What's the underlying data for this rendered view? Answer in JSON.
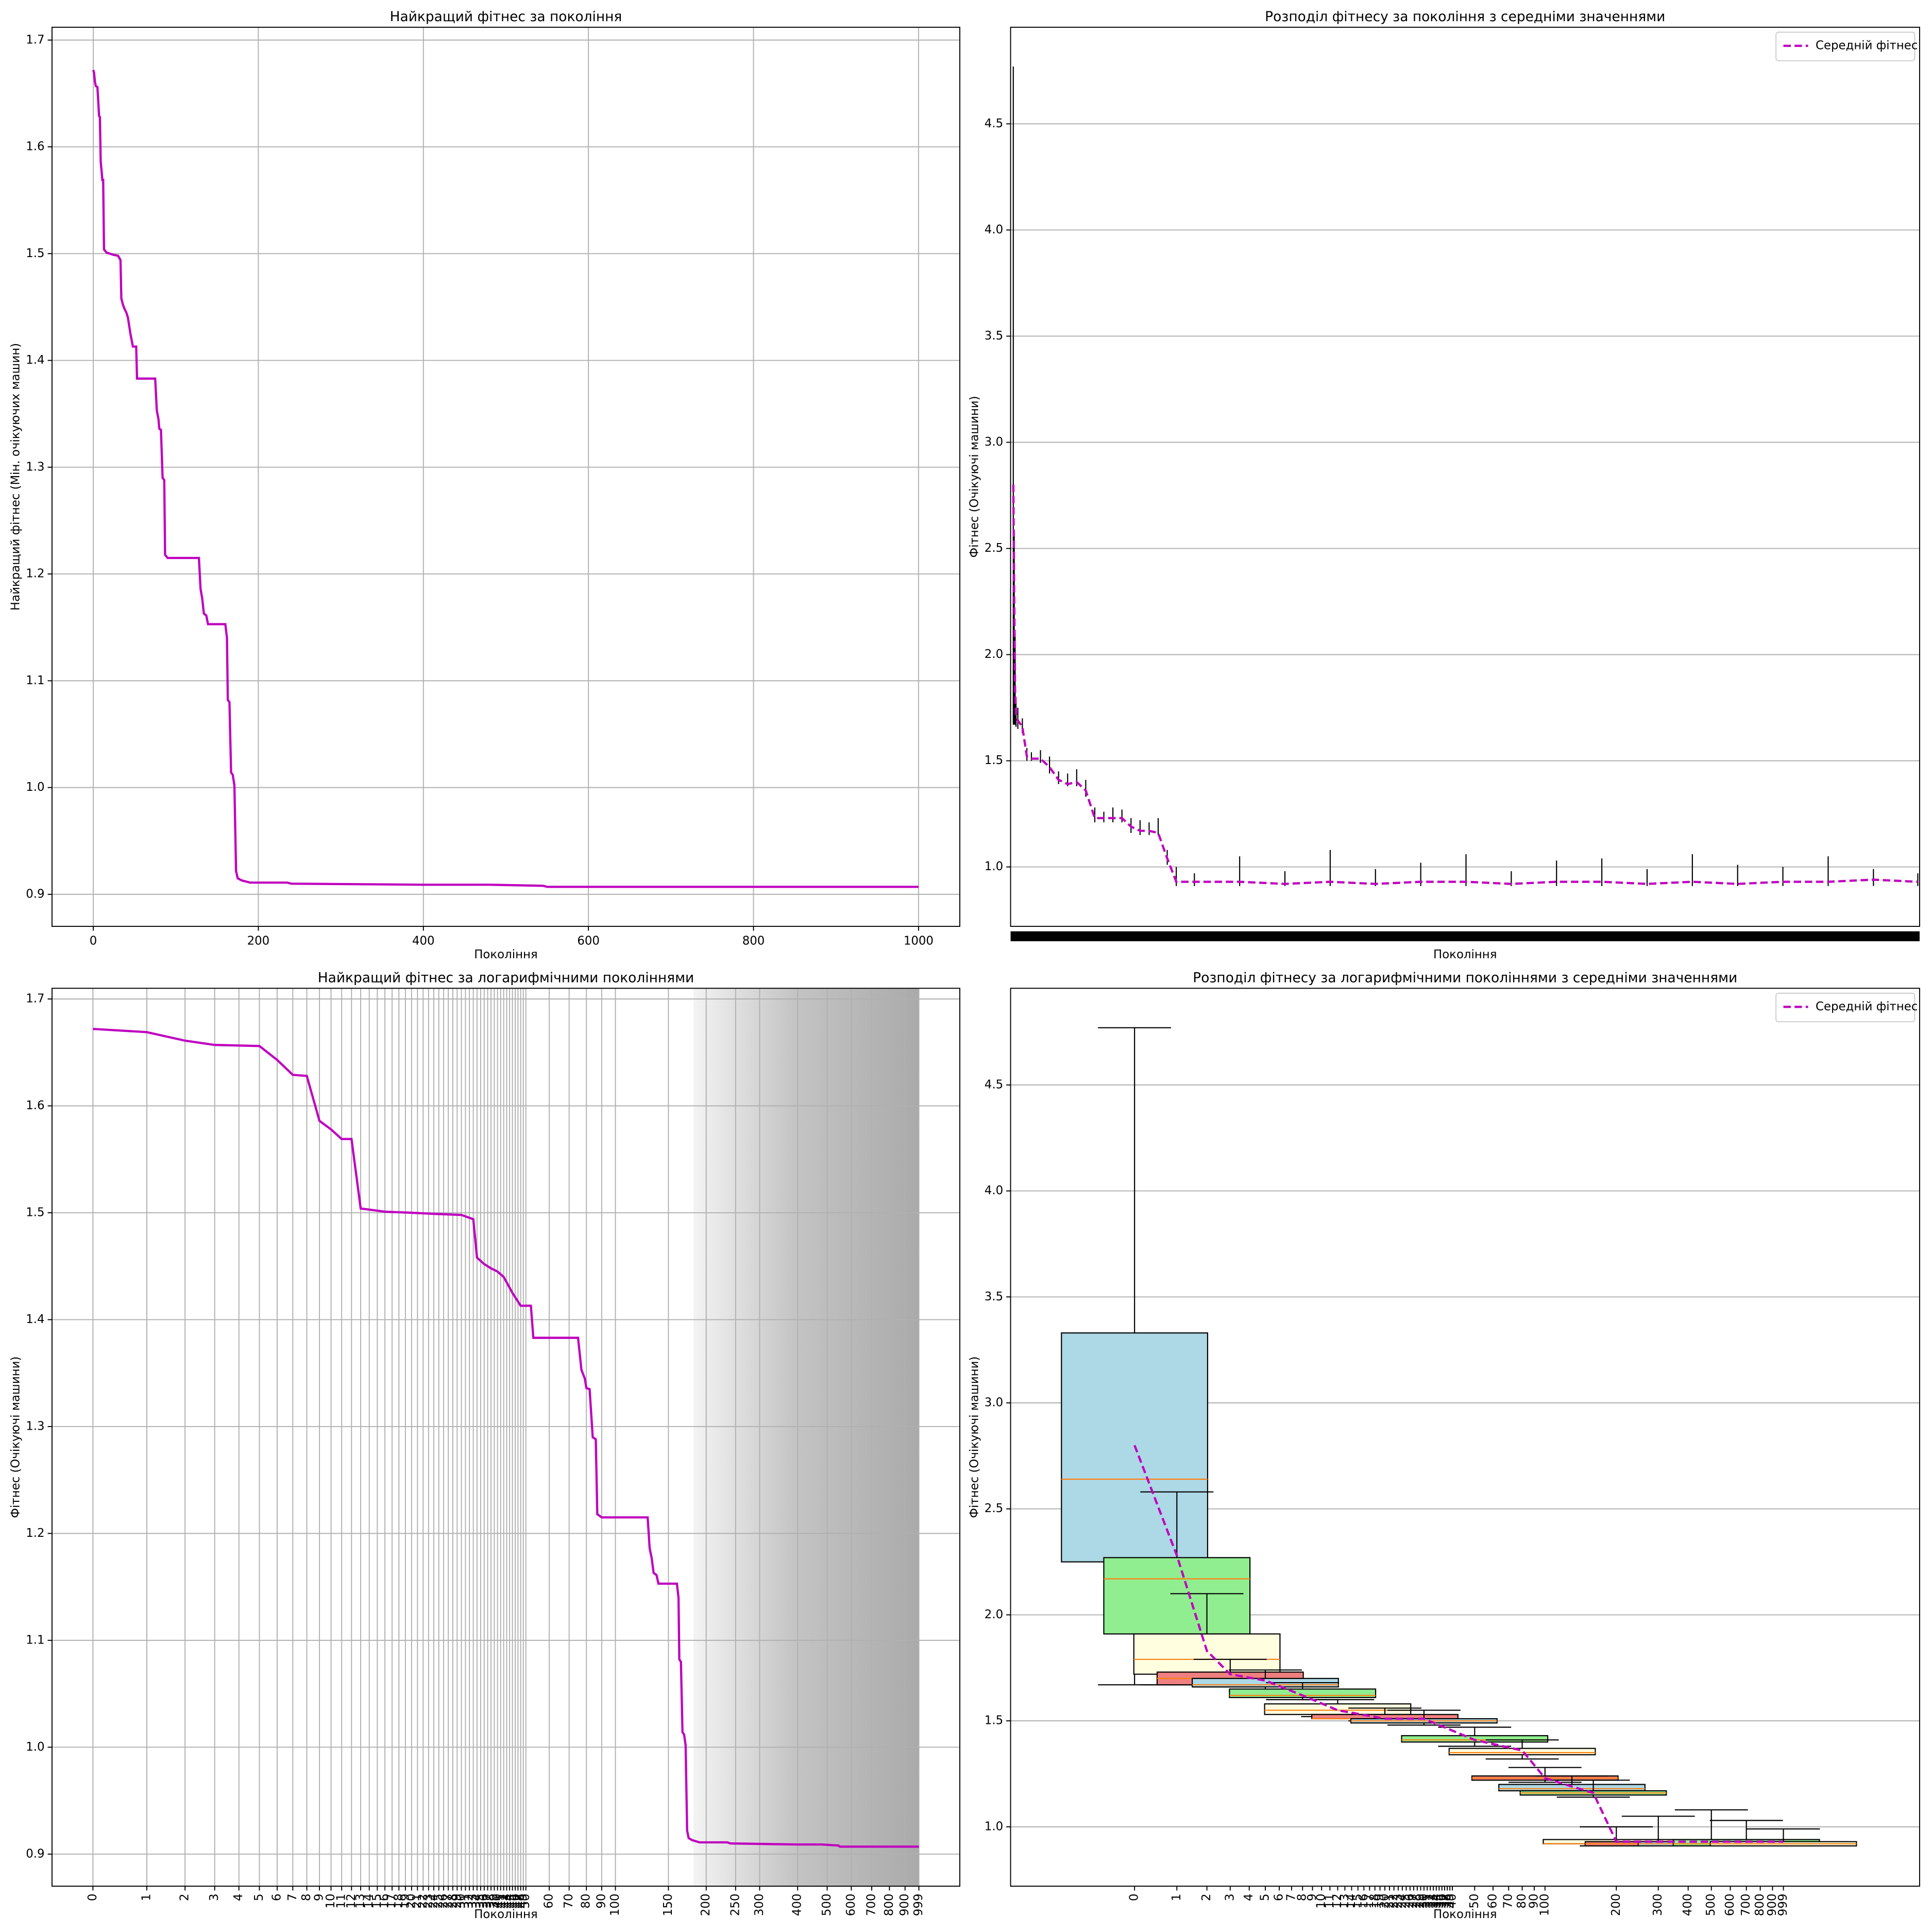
{
  "chart_data": [
    {
      "type": "line",
      "title": "Найкращий фітнес за покоління",
      "xlabel": "Покоління",
      "ylabel": "Найкращий фітнес (Мін. очікуючих машин)",
      "x": [
        0,
        1,
        2,
        3,
        5,
        6,
        7,
        8,
        9,
        10,
        11,
        12,
        13,
        16,
        20,
        24,
        30,
        33,
        34,
        36,
        38,
        40,
        42,
        45,
        48,
        52,
        53,
        75,
        77,
        79,
        80,
        82,
        84,
        86,
        87,
        90,
        128,
        130,
        132,
        134,
        137,
        139,
        160,
        162,
        163,
        165,
        167,
        169,
        171,
        173,
        175,
        180,
        190,
        235,
        240,
        400,
        480,
        545,
        550,
        1000
      ],
      "values": [
        1.672,
        1.669,
        1.661,
        1.657,
        1.656,
        1.643,
        1.629,
        1.628,
        1.586,
        1.578,
        1.569,
        1.569,
        1.504,
        1.501,
        1.5,
        1.499,
        1.498,
        1.494,
        1.458,
        1.452,
        1.448,
        1.445,
        1.44,
        1.425,
        1.413,
        1.413,
        1.383,
        1.383,
        1.353,
        1.345,
        1.336,
        1.335,
        1.29,
        1.288,
        1.218,
        1.215,
        1.215,
        1.186,
        1.177,
        1.163,
        1.161,
        1.153,
        1.153,
        1.14,
        1.082,
        1.08,
        1.014,
        1.012,
        1.002,
        0.922,
        0.915,
        0.913,
        0.911,
        0.911,
        0.91,
        0.909,
        0.909,
        0.908,
        0.907,
        0.907
      ],
      "color": "#bf00bf",
      "xlim": [
        -50,
        1050
      ],
      "xticks": [
        0,
        200,
        400,
        600,
        800,
        1000
      ],
      "ylim": [
        0.87,
        1.712
      ],
      "yticks": [
        0.9,
        {
          "value": 1.0,
          "label": "1.0"
        },
        1.1,
        1.2,
        1.3,
        1.4,
        1.5,
        1.6,
        1.7
      ],
      "grid": "both"
    },
    {
      "type": "box",
      "title": "Розподіл фітнесу за покоління з середніми значеннями",
      "xlabel": "Покоління",
      "ylabel": "Фітнес (Очікуючі машини)",
      "x": [
        0,
        1,
        2,
        3,
        5,
        10,
        15,
        20,
        30,
        40,
        50,
        60,
        70,
        80,
        90,
        100,
        110,
        120,
        130,
        140,
        150,
        160,
        170,
        180,
        200,
        250,
        300,
        350,
        400,
        450,
        500,
        550,
        600,
        650,
        700,
        750,
        800,
        850,
        900,
        950,
        999
      ],
      "whislo": [
        1.67,
        1.67,
        1.67,
        1.66,
        1.65,
        1.63,
        1.5,
        1.5,
        1.49,
        1.44,
        1.39,
        1.38,
        1.38,
        1.33,
        1.21,
        1.21,
        1.21,
        1.21,
        1.16,
        1.15,
        1.15,
        1.15,
        1.01,
        0.91,
        0.91,
        0.91,
        0.91,
        0.91,
        0.91,
        0.91,
        0.91,
        0.91,
        0.91,
        0.91,
        0.91,
        0.91,
        0.91,
        0.91,
        0.91,
        0.91,
        0.91
      ],
      "whishi": [
        4.77,
        2.58,
        2.1,
        1.8,
        1.75,
        1.7,
        1.56,
        1.54,
        1.55,
        1.52,
        1.45,
        1.44,
        1.46,
        1.41,
        1.28,
        1.26,
        1.28,
        1.27,
        1.23,
        1.22,
        1.21,
        1.23,
        1.08,
        1.0,
        0.97,
        1.05,
        0.98,
        1.08,
        0.99,
        1.02,
        1.06,
        0.98,
        1.03,
        1.04,
        0.99,
        1.06,
        1.01,
        1.0,
        1.05,
        0.99,
        0.97
      ],
      "series": [
        {
          "name": "Середній фітнес",
          "color": "#bf00bf",
          "values": [
            2.8,
            2.28,
            1.83,
            1.72,
            1.69,
            1.66,
            1.52,
            1.51,
            1.51,
            1.47,
            1.41,
            1.39,
            1.4,
            1.36,
            1.23,
            1.23,
            1.23,
            1.23,
            1.19,
            1.17,
            1.17,
            1.16,
            1.04,
            0.93,
            0.93,
            0.93,
            0.92,
            0.93,
            0.92,
            0.93,
            0.93,
            0.92,
            0.93,
            0.93,
            0.92,
            0.93,
            0.92,
            0.93,
            0.93,
            0.94,
            0.93
          ]
        }
      ],
      "xlim": [
        -3,
        1001
      ],
      "ylim": [
        0.72,
        4.955
      ],
      "yticks": [
        {
          "value": 1.0,
          "label": "1.0"
        },
        1.5,
        {
          "value": 2.0,
          "label": "2.0"
        },
        2.5,
        {
          "value": 3.0,
          "label": "3.0"
        },
        3.5,
        {
          "value": 4.0,
          "label": "4.0"
        },
        4.5
      ],
      "grid": "y",
      "legend": "upper right"
    },
    {
      "type": "line",
      "title": "Найкращий фітнес за логарифмічними поколіннями",
      "xlabel": "Покоління",
      "ylabel": "Фітнес (Очікуючі машини)",
      "xscale": "log",
      "x": [
        0,
        1,
        2,
        3,
        5,
        6,
        7,
        8,
        9,
        10,
        11,
        12,
        13,
        16,
        20,
        24,
        30,
        33,
        34,
        36,
        38,
        40,
        42,
        45,
        48,
        52,
        53,
        75,
        77,
        79,
        80,
        82,
        84,
        86,
        87,
        90,
        128,
        130,
        132,
        134,
        137,
        139,
        160,
        162,
        163,
        165,
        167,
        169,
        171,
        173,
        175,
        180,
        190,
        235,
        240,
        400,
        480,
        545,
        550,
        999
      ],
      "values": [
        1.672,
        1.669,
        1.661,
        1.657,
        1.656,
        1.643,
        1.629,
        1.628,
        1.586,
        1.578,
        1.569,
        1.569,
        1.504,
        1.501,
        1.5,
        1.499,
        1.498,
        1.494,
        1.458,
        1.452,
        1.448,
        1.445,
        1.44,
        1.425,
        1.413,
        1.413,
        1.383,
        1.383,
        1.353,
        1.345,
        1.336,
        1.335,
        1.29,
        1.288,
        1.218,
        1.215,
        1.215,
        1.186,
        1.177,
        1.163,
        1.161,
        1.153,
        1.153,
        1.14,
        1.082,
        1.08,
        1.014,
        1.012,
        1.002,
        0.922,
        0.915,
        0.913,
        0.911,
        0.911,
        0.91,
        0.909,
        0.909,
        0.908,
        0.907,
        0.907
      ],
      "color": "#bf00bf",
      "xlim": [
        -0.53,
        1360
      ],
      "xticks": [
        0,
        1,
        2,
        3,
        4,
        5,
        6,
        7,
        8,
        9,
        10,
        11,
        12,
        13,
        14,
        15,
        16,
        17,
        18,
        19,
        20,
        21,
        22,
        23,
        24,
        25,
        26,
        27,
        28,
        29,
        30,
        31,
        32,
        33,
        34,
        35,
        36,
        37,
        38,
        39,
        40,
        41,
        42,
        43,
        44,
        45,
        46,
        47,
        48,
        49,
        50,
        60,
        70,
        80,
        90,
        100,
        150,
        200,
        250,
        300,
        400,
        500,
        600,
        700,
        800,
        900,
        999
      ],
      "xtick_rotation": 90,
      "ylim": [
        0.87,
        1.71
      ],
      "yticks": [
        0.9,
        {
          "value": 1.0,
          "label": "1.0"
        },
        1.1,
        1.2,
        1.3,
        1.4,
        1.5,
        1.6,
        1.7
      ],
      "grid": "both"
    },
    {
      "type": "box",
      "title": "Розподіл фітнесу за логарифмічними поколіннями з середніми значеннями",
      "xlabel": "Покоління",
      "ylabel": "Фітнес (Очікуючі машини)",
      "xscale": "log",
      "x": [
        0,
        1,
        2,
        3,
        5,
        8,
        12,
        20,
        30,
        50,
        80,
        100,
        130,
        160,
        200,
        300,
        500,
        700,
        999
      ],
      "whislo": [
        1.67,
        1.67,
        1.67,
        1.66,
        1.64,
        1.6,
        1.52,
        1.5,
        1.48,
        1.38,
        1.32,
        1.21,
        1.16,
        1.14,
        0.91,
        0.91,
        0.91,
        0.91,
        0.91
      ],
      "q1": [
        2.25,
        1.91,
        1.72,
        1.67,
        1.66,
        1.61,
        1.53,
        1.51,
        1.49,
        1.4,
        1.34,
        1.22,
        1.17,
        1.15,
        0.92,
        0.91,
        0.91,
        0.91,
        0.91
      ],
      "median": [
        2.64,
        2.17,
        1.79,
        1.7,
        1.67,
        1.62,
        1.55,
        1.51,
        1.5,
        1.41,
        1.35,
        1.23,
        1.18,
        1.16,
        0.92,
        0.92,
        0.92,
        0.92,
        0.92
      ],
      "q3": [
        3.33,
        2.27,
        1.91,
        1.73,
        1.7,
        1.65,
        1.58,
        1.53,
        1.51,
        1.43,
        1.37,
        1.24,
        1.2,
        1.17,
        0.94,
        0.93,
        0.93,
        0.94,
        0.93
      ],
      "whishi": [
        4.77,
        2.58,
        2.1,
        1.79,
        1.74,
        1.68,
        1.6,
        1.56,
        1.55,
        1.47,
        1.41,
        1.28,
        1.24,
        1.22,
        1.0,
        1.05,
        1.08,
        1.03,
        0.99
      ],
      "colors": [
        "#add8e6",
        "#90ee90",
        "#ffffe0",
        "#f08080"
      ],
      "median_color": "#ff7f0e",
      "series": [
        {
          "name": "Середній фітнес",
          "color": "#bf00bf",
          "values": [
            2.8,
            2.28,
            1.83,
            1.72,
            1.69,
            1.62,
            1.55,
            1.51,
            1.51,
            1.41,
            1.36,
            1.23,
            1.19,
            1.16,
            0.93,
            0.93,
            0.93,
            0.93,
            0.93
          ]
        }
      ],
      "xlim": [
        -1.39,
        3689
      ],
      "xticks": [
        0,
        1,
        2,
        3,
        4,
        5,
        6,
        7,
        8,
        9,
        10,
        11,
        12,
        13,
        14,
        15,
        16,
        17,
        18,
        19,
        20,
        21,
        22,
        23,
        24,
        25,
        26,
        27,
        28,
        29,
        30,
        31,
        32,
        33,
        34,
        35,
        36,
        37,
        38,
        39,
        40,
        50,
        60,
        70,
        80,
        90,
        100,
        200,
        300,
        400,
        500,
        600,
        700,
        800,
        900,
        999
      ],
      "xtick_rotation": 90,
      "ylim": [
        0.72,
        4.956
      ],
      "yticks": [
        {
          "value": 1.0,
          "label": "1.0"
        },
        1.5,
        {
          "value": 2.0,
          "label": "2.0"
        },
        2.5,
        {
          "value": 3.0,
          "label": "3.0"
        },
        3.5,
        {
          "value": 4.0,
          "label": "4.0"
        },
        4.5
      ],
      "grid": "y",
      "legend": "upper right"
    }
  ]
}
